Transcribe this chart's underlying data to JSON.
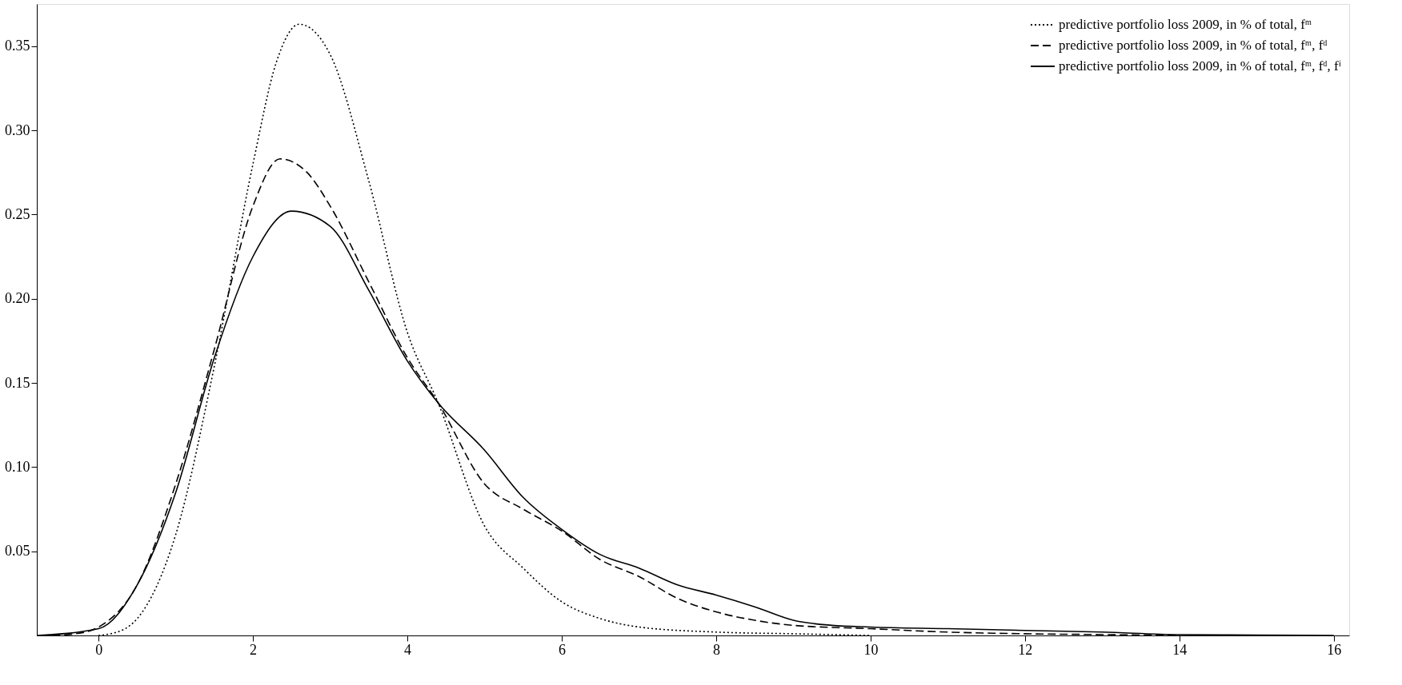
{
  "chart_data": {
    "type": "line",
    "xlim": [
      -0.8,
      16.2
    ],
    "ylim": [
      0,
      0.375
    ],
    "xticks": [
      0,
      2,
      4,
      6,
      8,
      10,
      12,
      14,
      16
    ],
    "yticks": [
      0.05,
      {
        "value": 0.1,
        "label": "0.10"
      },
      0.15,
      {
        "value": 0.2,
        "label": "0.20"
      },
      0.25,
      {
        "value": 0.3,
        "label": "0.30"
      },
      0.35
    ],
    "grid": false,
    "legend": "top right",
    "marker": "none",
    "series": [
      {
        "name": "predictive portfolio loss 2009, in % of total, fᵐ",
        "color": "#000000",
        "line_style": "dotted",
        "x": [
          0,
          0.3,
          0.5,
          1.0,
          1.5,
          2.0,
          2.3,
          2.6,
          3.0,
          3.5,
          4.0,
          4.4,
          5.0,
          5.5,
          6.0,
          6.5,
          7.0,
          8.0,
          9.0,
          10.0
        ],
        "values": [
          0,
          0.003,
          0.01,
          0.06,
          0.16,
          0.28,
          0.34,
          0.363,
          0.345,
          0.27,
          0.18,
          0.138,
          0.065,
          0.04,
          0.02,
          0.01,
          0.005,
          0.002,
          0.001,
          0
        ]
      },
      {
        "name": "predictive portfolio loss 2009, in % of total, fᵐ, fᵈ",
        "color": "#000000",
        "line_style": "dashed",
        "x": [
          -0.6,
          -0.3,
          0,
          0.5,
          1.0,
          1.5,
          2.0,
          2.35,
          2.7,
          3.0,
          3.5,
          4.0,
          4.4,
          5.0,
          5.5,
          6.0,
          6.5,
          7.0,
          7.5,
          8.0,
          8.5,
          9.0,
          10.0,
          11.0,
          12.0,
          13.0,
          14.0
        ],
        "values": [
          0,
          0.001,
          0.005,
          0.03,
          0.09,
          0.17,
          0.255,
          0.283,
          0.275,
          0.255,
          0.21,
          0.165,
          0.138,
          0.09,
          0.075,
          0.062,
          0.045,
          0.035,
          0.022,
          0.014,
          0.009,
          0.006,
          0.004,
          0.002,
          0.001,
          0.0005,
          0
        ]
      },
      {
        "name": "predictive portfolio loss 2009, in % of total, fᵐ, fᵈ, fⁱ",
        "color": "#000000",
        "line_style": "solid",
        "x": [
          -0.8,
          0,
          0.5,
          1.0,
          1.5,
          2.0,
          2.5,
          3.0,
          3.5,
          4.0,
          4.4,
          5.0,
          5.5,
          6.0,
          6.5,
          7.0,
          7.5,
          8.0,
          8.5,
          9.0,
          9.5,
          10.0,
          11.0,
          12.0,
          13.0,
          14.0,
          15.0,
          16.0
        ],
        "values": [
          0,
          0.004,
          0.03,
          0.085,
          0.165,
          0.225,
          0.252,
          0.243,
          0.205,
          0.163,
          0.138,
          0.11,
          0.082,
          0.063,
          0.048,
          0.04,
          0.03,
          0.024,
          0.017,
          0.009,
          0.006,
          0.005,
          0.004,
          0.003,
          0.002,
          0.0005,
          0.0002,
          0
        ]
      }
    ]
  }
}
